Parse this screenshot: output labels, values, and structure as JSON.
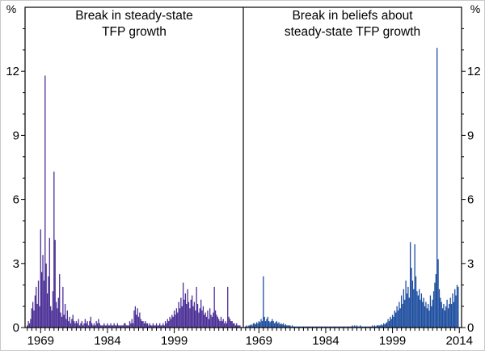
{
  "figure": {
    "left_percent_label": "%",
    "right_percent_label": "%"
  },
  "chart_data": [
    {
      "type": "bar",
      "panel": "left",
      "title": "Break in steady-state TFP growth",
      "title_lines": [
        "Break in steady-state",
        "TFP growth"
      ],
      "bar_color": "#4b2f96",
      "xlabel": "",
      "ylabel": "%",
      "xlim": [
        1965.5,
        2014.5
      ],
      "ylim": [
        0,
        15
      ],
      "x_start": 1966.0,
      "x_step": 0.25,
      "x_ticks": [
        1969,
        1984,
        1999
      ],
      "y_ticks": [
        0,
        3,
        6,
        9,
        12
      ],
      "values": [
        0.1,
        0.3,
        0.2,
        0.4,
        0.9,
        1.2,
        0.8,
        1.5,
        1.9,
        1.1,
        2.2,
        1.0,
        4.6,
        2.6,
        3.4,
        2.2,
        11.8,
        3.0,
        1.6,
        2.4,
        4.2,
        1.0,
        0.8,
        1.7,
        7.3,
        4.1,
        1.2,
        0.9,
        1.4,
        2.5,
        0.7,
        0.5,
        1.9,
        0.6,
        1.1,
        0.4,
        0.8,
        0.3,
        0.5,
        0.2,
        0.4,
        0.6,
        0.3,
        0.2,
        0.3,
        0.2,
        0.4,
        0.1,
        0.2,
        0.3,
        0.1,
        0.2,
        0.4,
        0.2,
        0.3,
        0.1,
        0.3,
        0.5,
        0.2,
        0.1,
        0.2,
        0.1,
        0.3,
        0.2,
        0.4,
        0.2,
        0.1,
        0.1,
        0.1,
        0.2,
        0.1,
        0.1,
        0.2,
        0.1,
        0.1,
        0.2,
        0.1,
        0.1,
        0.2,
        0.1,
        0.1,
        0.2,
        0.1,
        0.1,
        0.1,
        0.1,
        0.1,
        0.2,
        0.2,
        0.1,
        0.1,
        0.1,
        0.3,
        0.2,
        0.4,
        0.2,
        0.8,
        1.0,
        0.6,
        0.9,
        0.5,
        0.7,
        0.4,
        0.3,
        0.3,
        0.2,
        0.3,
        0.2,
        0.2,
        0.1,
        0.2,
        0.1,
        0.1,
        0.2,
        0.1,
        0.1,
        0.2,
        0.1,
        0.1,
        0.2,
        0.1,
        0.1,
        0.2,
        0.1,
        0.3,
        0.2,
        0.4,
        0.3,
        0.5,
        0.4,
        0.6,
        0.5,
        0.8,
        0.6,
        0.9,
        0.7,
        1.2,
        0.9,
        1.4,
        1.0,
        2.1,
        1.3,
        1.6,
        1.1,
        1.8,
        1.2,
        0.9,
        1.3,
        1.5,
        1.0,
        1.2,
        0.8,
        1.9,
        1.1,
        0.7,
        0.9,
        1.3,
        0.8,
        1.0,
        0.6,
        0.7,
        0.5,
        0.8,
        0.4,
        0.9,
        0.6,
        0.5,
        0.7,
        1.9,
        0.8,
        0.6,
        0.5,
        0.4,
        0.3,
        0.5,
        0.3,
        0.4,
        0.2,
        0.3,
        0.2,
        1.9,
        0.5,
        0.4,
        0.3,
        0.3,
        0.2,
        0.2,
        0.1,
        0.2,
        0.1,
        0.1,
        0.1
      ]
    },
    {
      "type": "bar",
      "panel": "right",
      "title": "Break in beliefs about steady-state TFP growth",
      "title_lines": [
        "Break in beliefs about",
        "steady-state TFP growth"
      ],
      "bar_color": "#1d4d9f",
      "xlabel": "",
      "ylabel": "%",
      "xlim": [
        1965.5,
        2014.5
      ],
      "ylim": [
        0,
        15
      ],
      "x_start": 1966.0,
      "x_step": 0.25,
      "x_ticks": [
        1969,
        1984,
        1999,
        2014
      ],
      "y_ticks": [
        0,
        3,
        6,
        9,
        12
      ],
      "values": [
        0.05,
        0.1,
        0.05,
        0.1,
        0.1,
        0.15,
        0.1,
        0.2,
        0.2,
        0.15,
        0.25,
        0.2,
        0.3,
        0.25,
        0.4,
        0.3,
        2.4,
        0.5,
        0.3,
        0.4,
        0.5,
        0.3,
        0.25,
        0.3,
        0.4,
        0.3,
        0.2,
        0.25,
        0.3,
        0.2,
        0.25,
        0.15,
        0.2,
        0.15,
        0.2,
        0.1,
        0.15,
        0.1,
        0.1,
        0.1,
        0.1,
        0.05,
        0.1,
        0.05,
        0.05,
        0.05,
        0.05,
        0.05,
        0.05,
        0.05,
        0.05,
        0.05,
        0.05,
        0.05,
        0.05,
        0.05,
        0.05,
        0.05,
        0.05,
        0.05,
        0.05,
        0.05,
        0.05,
        0.05,
        0.05,
        0.05,
        0.05,
        0.05,
        0.05,
        0.05,
        0.05,
        0.05,
        0.05,
        0.05,
        0.05,
        0.05,
        0.05,
        0.05,
        0.05,
        0.05,
        0.05,
        0.05,
        0.05,
        0.05,
        0.05,
        0.05,
        0.05,
        0.05,
        0.05,
        0.05,
        0.05,
        0.05,
        0.05,
        0.05,
        0.05,
        0.05,
        0.1,
        0.05,
        0.1,
        0.05,
        0.1,
        0.05,
        0.05,
        0.1,
        0.05,
        0.05,
        0.05,
        0.05,
        0.05,
        0.05,
        0.05,
        0.05,
        0.05,
        0.05,
        0.1,
        0.05,
        0.1,
        0.05,
        0.1,
        0.1,
        0.1,
        0.1,
        0.15,
        0.1,
        0.2,
        0.15,
        0.2,
        0.25,
        0.4,
        0.3,
        0.5,
        0.4,
        0.6,
        0.5,
        0.8,
        0.7,
        1.0,
        0.8,
        1.2,
        0.9,
        1.5,
        1.1,
        1.8,
        1.3,
        2.2,
        1.6,
        1.9,
        1.4,
        4.0,
        2.8,
        2.2,
        1.8,
        3.9,
        2.4,
        1.7,
        1.5,
        1.8,
        1.3,
        1.6,
        1.2,
        1.4,
        1.0,
        1.2,
        0.9,
        1.1,
        0.8,
        1.5,
        1.0,
        1.3,
        1.7,
        2.1,
        2.5,
        13.1,
        3.2,
        1.8,
        1.4,
        1.2,
        0.9,
        1.1,
        0.8,
        1.0,
        1.3,
        0.9,
        1.1,
        1.4,
        1.1,
        1.6,
        1.2,
        1.8,
        1.5,
        2.0,
        1.9
      ]
    }
  ]
}
